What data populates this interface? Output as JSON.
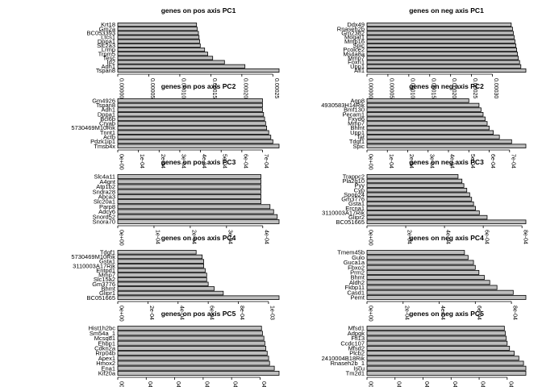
{
  "chart_data": [
    {
      "type": "bar",
      "orientation": "horizontal",
      "title": "genes on pos axis PC1",
      "categories": [
        "Tspan8",
        "Adh1",
        "Id2",
        "Tesc",
        "Trpm5",
        "Lrmp",
        "Slc2a3",
        "Dppa1",
        "Ltcs1",
        "BC053393",
        "Gm2a",
        "Krt18"
      ],
      "values": [
        0.00026,
        0.000205,
        0.000172,
        0.000153,
        0.000145,
        0.00014,
        0.000133,
        0.000132,
        0.000131,
        0.00013,
        0.000128,
        0.000127
      ],
      "xlim": [
        0,
        0.00026
      ],
      "ticks": [
        "0.00000",
        "0.00005",
        "0.00010",
        "0.00015",
        "0.00020",
        "0.00025"
      ],
      "tick_values": [
        0,
        5e-05,
        0.0001,
        0.00015,
        0.0002,
        0.00025
      ]
    },
    {
      "type": "bar",
      "orientation": "horizontal",
      "title": "genes on neg axis PC1",
      "categories": [
        "Afl1",
        "Upp1",
        "Foxn1",
        "Mmp7",
        "Ms4a8a",
        "Pcolce2",
        "Spic",
        "Mmp16",
        "Mogat1",
        "Gm2382",
        "Rnaseh2b",
        "Ddx49"
      ],
      "values": [
        0.00038,
        0.000368,
        0.000365,
        0.000362,
        0.00036,
        0.000358,
        0.000356,
        0.000354,
        0.000352,
        0.00035,
        0.000348,
        0.000345
      ],
      "xlim": [
        0,
        0.00038
      ],
      "ticks": [
        "0.00000",
        "0.00005",
        "0.00010",
        "0.00015",
        "0.00020",
        "0.00025",
        "0.00030"
      ],
      "tick_values": [
        0,
        5e-05,
        0.0001,
        0.00015,
        0.0002,
        0.00025,
        0.0003
      ]
    },
    {
      "type": "bar",
      "orientation": "horizontal",
      "title": "genes on pos axis PC2",
      "categories": [
        "Tmsb4x",
        "Pdzk1ip1",
        "Actb",
        "Tnnt1",
        "5730469M10Rik",
        "Cryab",
        "Bcl6b",
        "Dppa1",
        "Adh1",
        "Tspan8",
        "Gm4926"
      ],
      "values": [
        0.00078,
        0.00075,
        0.00074,
        0.00073,
        0.00072,
        0.000715,
        0.00071,
        0.000705,
        0.0007,
        0.0007,
        0.0007
      ],
      "xlim": [
        0,
        0.00078
      ],
      "ticks": [
        "0e+00",
        "1e-04",
        "2e-04",
        "3e-04",
        "4e-04",
        "5e-04",
        "6e-04",
        "7e-04"
      ],
      "tick_values": [
        0,
        0.0001,
        0.0002,
        0.0003,
        0.0004,
        0.0005,
        0.0006,
        0.0007
      ]
    },
    {
      "type": "bar",
      "orientation": "horizontal",
      "title": "genes on neg axis PC2",
      "categories": [
        "Spic",
        "Tdgf1",
        "Tat",
        "Upp1",
        "Bhmt",
        "Mmp7",
        "Fxyd6",
        "Pecam1",
        "Bmf130",
        "4930583H14Rik",
        "Aqp8"
      ],
      "values": [
        0.00078,
        0.00071,
        0.00065,
        0.00062,
        0.0006,
        0.00059,
        0.00058,
        0.00057,
        0.00056,
        0.00055,
        0.0005
      ],
      "xlim": [
        0,
        0.00078
      ],
      "ticks": [
        "0e+00",
        "1e-04",
        "2e-04",
        "3e-04",
        "4e-04",
        "5e-04",
        "6e-04",
        "7e-04"
      ],
      "tick_values": [
        0,
        0.0001,
        0.0002,
        0.0003,
        0.0004,
        0.0005,
        0.0006,
        0.0007
      ]
    },
    {
      "type": "bar",
      "orientation": "horizontal",
      "title": "genes on pos axis PC3",
      "categories": [
        "Snora70",
        "Snord52",
        "Adcy6",
        "Parp8",
        "Slc20a1",
        "Abca3",
        "Sndra28",
        "Atp1b2",
        "A4gnt",
        "Slc4a11"
      ],
      "values": [
        0.000445,
        0.00044,
        0.00043,
        0.00042,
        0.000395,
        0.000395,
        0.000395,
        0.000395,
        0.000395,
        0.000395
      ],
      "xlim": [
        0,
        0.000445
      ],
      "ticks": [
        "0e+00",
        "1e-04",
        "2e-04",
        "3e-04",
        "4e-04"
      ],
      "tick_values": [
        0,
        0.0001,
        0.0002,
        0.0003,
        0.0004
      ]
    },
    {
      "type": "bar",
      "orientation": "horizontal",
      "title": "genes on neg axis PC3",
      "categories": [
        "BC051665",
        "Glipr2",
        "3110003A17Rik",
        "Ercna1",
        "Gsta1",
        "Gm3776",
        "Spop24",
        "Cyp",
        "Pyy",
        "Pla2g10",
        "Trappc2"
      ],
      "values": [
        0.00082,
        0.00062,
        0.00058,
        0.00056,
        0.00055,
        0.00054,
        0.00053,
        0.000515,
        0.0005,
        0.00049,
        0.00047
      ],
      "xlim": [
        0,
        0.00082
      ],
      "ticks": [
        "0e+00",
        "2e-04",
        "4e-04",
        "6e-04",
        "8e-04"
      ],
      "tick_values": [
        0,
        0.0002,
        0.0004,
        0.0006,
        0.0008
      ]
    },
    {
      "type": "bar",
      "orientation": "horizontal",
      "title": "genes on pos axis PC4",
      "categories": [
        "BC051665",
        "Glipr1",
        "Bhmt",
        "Gm3776",
        "Slc15a2",
        "Mmp7",
        "Entpd1",
        "3110003A17Rik",
        "Gsta1",
        "5730469M10Rik",
        "Tdgf1"
      ],
      "values": [
        0.00107,
        0.0007,
        0.00064,
        0.0006,
        0.00059,
        0.00059,
        0.00058,
        0.00057,
        0.00057,
        0.00056,
        0.00052
      ],
      "xlim": [
        0,
        0.00107
      ],
      "ticks": [
        "0e+00",
        "2e-04",
        "4e-04",
        "6e-04",
        "8e-04",
        "1e-03"
      ],
      "tick_values": [
        0,
        0.0002,
        0.0004,
        0.0006,
        0.0008,
        0.001
      ]
    },
    {
      "type": "bar",
      "orientation": "horizontal",
      "title": "genes on neg axis PC4",
      "categories": [
        "Pemt",
        "Casd1",
        "Fkbp11",
        "Aldh2",
        "Bhmt",
        "Prm2",
        "Fbxo2",
        "Guca1a",
        "Gulo",
        "Tmem45b"
      ],
      "values": [
        0.00088,
        0.00081,
        0.00072,
        0.00068,
        0.00065,
        0.00062,
        0.0006,
        0.00059,
        0.00056,
        0.00054
      ],
      "xlim": [
        0,
        0.00088
      ],
      "ticks": [
        "0e+00",
        "2e-04",
        "4e-04",
        "6e-04",
        "8e-04"
      ],
      "tick_values": [
        0,
        0.0002,
        0.0004,
        0.0006,
        0.0008
      ]
    },
    {
      "type": "bar",
      "orientation": "horizontal",
      "title": "genes on pos axis PC5",
      "categories": [
        "Kif20a",
        "Ena1",
        "Hmox2",
        "Apex1",
        "Rrp04b",
        "Cdkn2a",
        "Ehbp1",
        "Mcsqd1",
        "Sm54a_1",
        "Hist1h2bc"
      ],
      "values": [
        0.00034,
        0.00033,
        0.00032,
        0.000318,
        0.000315,
        0.000312,
        0.00031,
        0.000308,
        0.000305,
        0.000303
      ],
      "xlim": [
        0,
        0.00034
      ],
      "ticks": [
        "00",
        "04",
        "04",
        "04",
        "04",
        "04"
      ],
      "tick_values": [
        0,
        6e-05,
        0.00012,
        0.00018,
        0.00024,
        0.0003
      ]
    },
    {
      "type": "bar",
      "orientation": "horizontal",
      "title": "genes on neg axis PC5",
      "categories": [
        "Tm2d1",
        "Iscu",
        "Rnaseh2b_1",
        "2410004B18Rik",
        "Plcb2",
        "Mfsd2",
        "Ccdc107",
        "Ffl13",
        "Adpgk",
        "Mfsd1"
      ],
      "values": [
        0.00034,
        0.00034,
        0.000335,
        0.000325,
        0.000315,
        0.000305,
        0.0003,
        0.000298,
        0.000296,
        0.000294
      ],
      "xlim": [
        0,
        0.00034
      ],
      "ticks": [
        "00",
        "04",
        "04",
        "04",
        "04",
        "04"
      ],
      "tick_values": [
        0,
        6e-05,
        0.00012,
        0.00018,
        0.00024,
        0.0003
      ]
    }
  ],
  "colors": {
    "bar_fill": "#bebebe",
    "bar_stroke": "#000000",
    "background": "#ffffff"
  }
}
